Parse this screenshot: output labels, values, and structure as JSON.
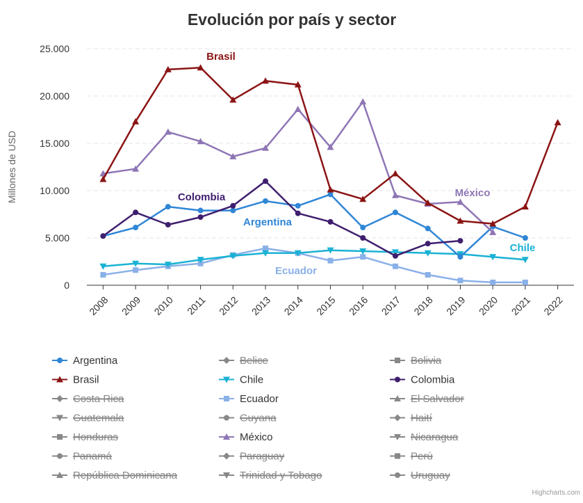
{
  "chart_data": {
    "type": "line",
    "title": "Evolución por país y sector",
    "ylabel": "Millones de USD",
    "xlabel": "",
    "ylim": [
      0,
      25000
    ],
    "yticks": [
      0,
      5000,
      10000,
      15000,
      20000,
      25000
    ],
    "ytick_labels": [
      "0",
      "5.000",
      "10.000",
      "15.000",
      "20.000",
      "25.000"
    ],
    "categories": [
      "2008",
      "2009",
      "2010",
      "2011",
      "2012",
      "2013",
      "2014",
      "2015",
      "2016",
      "2017",
      "2018",
      "2019",
      "2020",
      "2021",
      "2022"
    ],
    "grid": "horizontal dashed",
    "legend_position": "bottom",
    "series": [
      {
        "name": "Argentina",
        "color": "#2f86d6",
        "marker": "circle",
        "visible": true,
        "values": [
          5200,
          6100,
          8300,
          7900,
          7900,
          8900,
          8400,
          9600,
          6100,
          7700,
          6000,
          3000,
          6200,
          5000,
          null
        ],
        "label": "Argentina"
      },
      {
        "name": "Belice",
        "visible": false
      },
      {
        "name": "Bolivia",
        "visible": false
      },
      {
        "name": "Brasil",
        "color": "#8b1414",
        "marker": "triangle",
        "visible": true,
        "values": [
          11200,
          17300,
          22800,
          23000,
          19600,
          21600,
          21200,
          10100,
          9100,
          11800,
          8700,
          6800,
          6500,
          8300,
          17200
        ],
        "label": "Brasil"
      },
      {
        "name": "Chile",
        "color": "#1ab2d4",
        "marker": "triangle-down",
        "visible": true,
        "values": [
          2000,
          2300,
          2200,
          2700,
          3100,
          3400,
          3400,
          3700,
          3600,
          3500,
          3400,
          3300,
          3000,
          2700,
          null
        ],
        "label": "Chile"
      },
      {
        "name": "Colombia",
        "color": "#3f1e6e",
        "marker": "circle",
        "visible": true,
        "values": [
          5200,
          7700,
          6400,
          7200,
          8400,
          11000,
          7600,
          6700,
          5000,
          3100,
          4400,
          4700,
          null,
          null,
          null
        ],
        "label": "Colombia"
      },
      {
        "name": "Costa Rica",
        "visible": false
      },
      {
        "name": "Ecuador",
        "color": "#8ab0e8",
        "marker": "square",
        "visible": true,
        "values": [
          1100,
          1600,
          2000,
          2300,
          3200,
          3900,
          3400,
          2600,
          3000,
          2000,
          1100,
          500,
          300,
          300,
          null
        ],
        "label": "Ecuador"
      },
      {
        "name": "El Salvador",
        "visible": false
      },
      {
        "name": "Guatemala",
        "visible": false
      },
      {
        "name": "Guyana",
        "visible": false
      },
      {
        "name": "Haití",
        "visible": false
      },
      {
        "name": "Honduras",
        "visible": false
      },
      {
        "name": "México",
        "color": "#8e76b5",
        "marker": "triangle",
        "visible": true,
        "values": [
          11800,
          12300,
          16200,
          15200,
          13600,
          14500,
          18600,
          14600,
          19400,
          9500,
          8600,
          8800,
          5600,
          null,
          null
        ],
        "label": "México"
      },
      {
        "name": "Nicaragua",
        "visible": false
      },
      {
        "name": "Panamá",
        "visible": false
      },
      {
        "name": "Paraguay",
        "visible": false
      },
      {
        "name": "Perú",
        "visible": false
      },
      {
        "name": "República Dominicana",
        "visible": false
      },
      {
        "name": "Trinidad y Tobago",
        "visible": false
      },
      {
        "name": "Uruguay",
        "visible": false
      }
    ],
    "legend_order": [
      [
        "Argentina",
        "Belice",
        "Bolivia"
      ],
      [
        "Brasil",
        "Chile",
        "Colombia"
      ],
      [
        "Costa Rica",
        "Ecuador",
        "El Salvador"
      ],
      [
        "Guatemala",
        "Guyana",
        "Haití"
      ],
      [
        "Honduras",
        "México",
        "Nicaragua"
      ],
      [
        "Panamá",
        "Paraguay",
        "Perú"
      ],
      [
        "República Dominicana",
        "Trinidad y Tobago",
        "Uruguay"
      ]
    ],
    "hidden_legend_markers": {
      "Belice": "diamond",
      "Bolivia": "square",
      "Costa Rica": "diamond",
      "El Salvador": "triangle",
      "Guatemala": "triangle-down",
      "Guyana": "circle",
      "Haití": "diamond",
      "Honduras": "square",
      "Nicaragua": "triangle-down",
      "Panamá": "circle",
      "Paraguay": "diamond",
      "Perú": "square",
      "República Dominicana": "triangle",
      "Trinidad y Tobago": "triangle-down",
      "Uruguay": "circle"
    }
  },
  "credit": "Highcharts.com",
  "colors": {
    "hidden_series": "#888888",
    "grid": "#e6e6e6",
    "axis_text": "#333333"
  }
}
